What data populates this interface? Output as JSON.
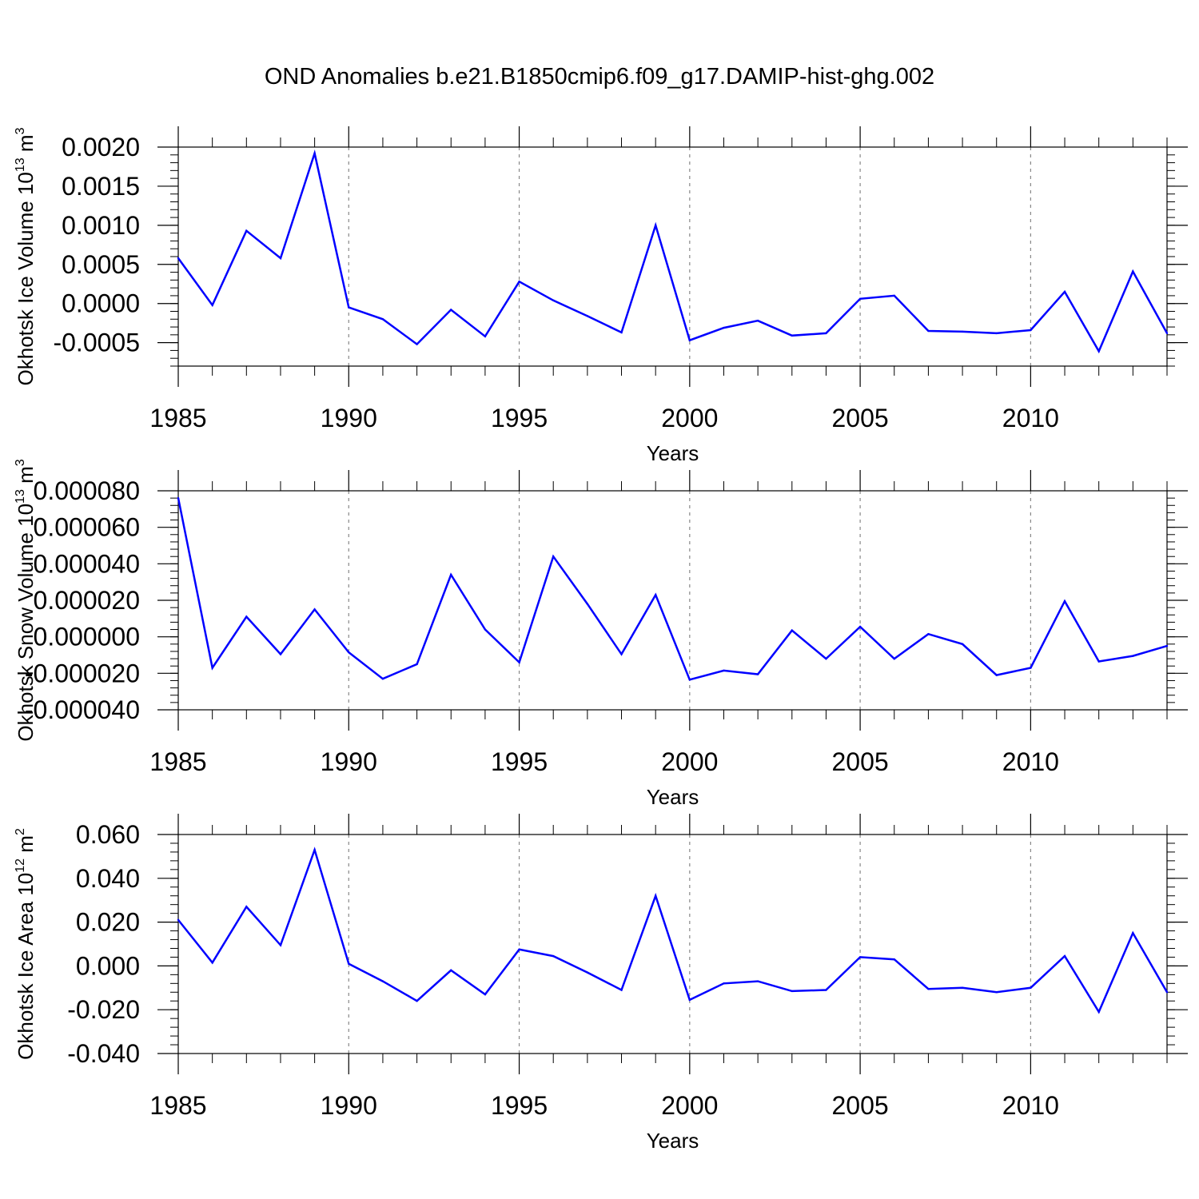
{
  "figure_title": "OND Anomalies b.e21.B1850cmip6.f09_g17.DAMIP-hist-ghg.002",
  "chart_data": [
    {
      "type": "line",
      "ylabel": "Okhotsk Ice Volume 10",
      "ylabel_sup": "13",
      "ylabel_unit": "m",
      "ylabel_unit_sup": "3",
      "xlabel": "Years",
      "xlim": [
        1985,
        2014
      ],
      "ylim": [
        -0.0008,
        0.002
      ],
      "yticks": [
        -0.0005,
        0.0,
        0.0005,
        0.001,
        0.0015,
        0.002
      ],
      "ytick_labels": [
        "-0.0005",
        "0.0000",
        "0.0005",
        "0.0010",
        "0.0015",
        "0.0020"
      ],
      "xticks": [
        1985,
        1990,
        1995,
        2000,
        2005,
        2010
      ],
      "xtick_labels": [
        "1985",
        "1990",
        "1995",
        "2000",
        "2005",
        "2010"
      ],
      "color": "#0000ff",
      "x": [
        1985,
        1986,
        1987,
        1988,
        1989,
        1990,
        1991,
        1992,
        1993,
        1994,
        1995,
        1996,
        1997,
        1998,
        1999,
        2000,
        2001,
        2002,
        2003,
        2004,
        2005,
        2006,
        2007,
        2008,
        2009,
        2010,
        2011,
        2012,
        2013,
        2014
      ],
      "y": [
        0.00058,
        -2e-05,
        0.00093,
        0.00058,
        0.00192,
        -5e-05,
        -0.0002,
        -0.00052,
        -8e-05,
        -0.00042,
        0.00028,
        4e-05,
        -0.00016,
        -0.00037,
        0.001,
        -0.00047,
        -0.00031,
        -0.00022,
        -0.00041,
        -0.00038,
        6e-05,
        0.0001,
        -0.00035,
        -0.00036,
        -0.00038,
        -0.00034,
        0.00015,
        -0.00061,
        0.00041,
        -0.00038
      ]
    },
    {
      "type": "line",
      "ylabel": "Okhotsk Snow Volume 10",
      "ylabel_sup": "13",
      "ylabel_unit": "m",
      "ylabel_unit_sup": "3",
      "xlabel": "Years",
      "xlim": [
        1985,
        2014
      ],
      "ylim": [
        -4e-05,
        8e-05
      ],
      "yticks": [
        -4e-05,
        -2e-05,
        0.0,
        2e-05,
        4e-05,
        6e-05,
        8e-05
      ],
      "ytick_labels": [
        "-0.000040",
        "-0.000020",
        "0.000000",
        "0.000020",
        "0.000040",
        "0.000060",
        "0.000080"
      ],
      "xticks": [
        1985,
        1990,
        1995,
        2000,
        2005,
        2010
      ],
      "xtick_labels": [
        "1985",
        "1990",
        "1995",
        "2000",
        "2005",
        "2010"
      ],
      "color": "#0000ff",
      "x": [
        1985,
        1986,
        1987,
        1988,
        1989,
        1990,
        1991,
        1992,
        1993,
        1994,
        1995,
        1996,
        1997,
        1998,
        1999,
        2000,
        2001,
        2002,
        2003,
        2004,
        2005,
        2006,
        2007,
        2008,
        2009,
        2010,
        2011,
        2012,
        2013,
        2014
      ],
      "y": [
        7.6e-05,
        -1.7e-05,
        1.1e-05,
        -9.5e-06,
        1.5e-05,
        -8.5e-06,
        -2.3e-05,
        -1.5e-05,
        3.4e-05,
        4e-06,
        -1.4e-05,
        4.4e-05,
        1.8e-05,
        -9.5e-06,
        2.3e-05,
        -2.35e-05,
        -1.85e-05,
        -2.05e-05,
        3.5e-06,
        -1.2e-05,
        5.5e-06,
        -1.2e-05,
        1.5e-06,
        -4e-06,
        -2.1e-05,
        -1.7e-05,
        1.95e-05,
        -1.35e-05,
        -1.05e-05,
        -5e-06
      ]
    },
    {
      "type": "line",
      "ylabel": "Okhotsk Ice Area 10",
      "ylabel_sup": "12",
      "ylabel_unit": "m",
      "ylabel_unit_sup": "2",
      "xlabel": "Years",
      "xlim": [
        1985,
        2014
      ],
      "ylim": [
        -0.04,
        0.06
      ],
      "yticks": [
        -0.04,
        -0.02,
        0.0,
        0.02,
        0.04,
        0.06
      ],
      "ytick_labels": [
        "-0.040",
        "-0.020",
        "0.000",
        "0.020",
        "0.040",
        "0.060"
      ],
      "xticks": [
        1985,
        1990,
        1995,
        2000,
        2005,
        2010
      ],
      "xtick_labels": [
        "1985",
        "1990",
        "1995",
        "2000",
        "2005",
        "2010"
      ],
      "color": "#0000ff",
      "x": [
        1985,
        1986,
        1987,
        1988,
        1989,
        1990,
        1991,
        1992,
        1993,
        1994,
        1995,
        1996,
        1997,
        1998,
        1999,
        2000,
        2001,
        2002,
        2003,
        2004,
        2005,
        2006,
        2007,
        2008,
        2009,
        2010,
        2011,
        2012,
        2013,
        2014
      ],
      "y": [
        0.021,
        0.0015,
        0.027,
        0.0095,
        0.053,
        0.001,
        -0.007,
        -0.016,
        -0.002,
        -0.013,
        0.0075,
        0.0045,
        -0.003,
        -0.011,
        0.032,
        -0.0155,
        -0.008,
        -0.007,
        -0.0115,
        -0.011,
        0.004,
        0.003,
        -0.0105,
        -0.01,
        -0.012,
        -0.01,
        0.0045,
        -0.021,
        0.015,
        -0.012
      ]
    }
  ]
}
